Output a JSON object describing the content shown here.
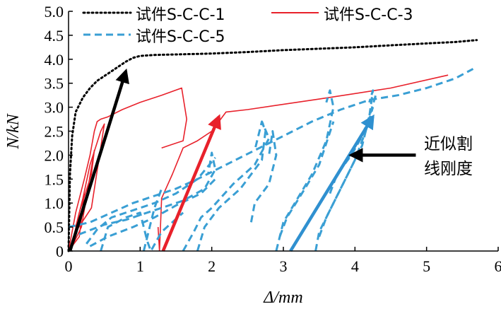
{
  "chart_data": {
    "type": "line",
    "xlabel": "Δ/mm",
    "ylabel": "N/kN",
    "xlim": [
      0,
      6
    ],
    "ylim": [
      0,
      5
    ],
    "xticks": [
      "0",
      "1",
      "2",
      "3",
      "4",
      "5",
      "6"
    ],
    "yticks": [
      "0",
      "0.5",
      "1.0",
      "1.5",
      "2.0",
      "2.5",
      "3.0",
      "3.5",
      "4.0",
      "4.5",
      "5.0"
    ],
    "grid": false,
    "legend_position": "top",
    "series": [
      {
        "name": "试件S-C-C-1",
        "color": "#000000",
        "style": "dotted",
        "x": [
          0,
          0.02,
          0.05,
          0.1,
          0.2,
          0.3,
          0.4,
          0.5,
          0.6,
          0.7,
          0.8,
          0.9,
          1.0,
          1.2,
          1.5,
          2.0,
          2.5,
          3.0,
          3.5,
          4.0,
          4.5,
          5.0,
          5.4,
          5.7
        ],
        "y": [
          0,
          1.6,
          2.4,
          2.9,
          3.2,
          3.4,
          3.55,
          3.65,
          3.75,
          3.85,
          3.95,
          4.03,
          4.07,
          4.09,
          4.1,
          4.12,
          4.15,
          4.19,
          4.22,
          4.25,
          4.29,
          4.33,
          4.36,
          4.4
        ]
      },
      {
        "name": "试件S-C-C-3",
        "color": "#e8212b",
        "style": "solid",
        "segments": [
          {
            "x": [
              0,
              0.1,
              0.22,
              0.3,
              0.36,
              0.4,
              0.45,
              0.55,
              0.75,
              1.0,
              1.3,
              1.58,
              1.65,
              1.6,
              1.3
            ],
            "y": [
              0,
              0.8,
              1.5,
              2.0,
              2.5,
              2.7,
              2.75,
              2.8,
              2.95,
              3.1,
              3.25,
              3.4,
              2.75,
              2.3,
              2.15
            ]
          },
          {
            "x": [
              0.1,
              0.2,
              0.3,
              0.45,
              0.5,
              0.32,
              0.1
            ],
            "y": [
              0.5,
              1.1,
              1.8,
              2.5,
              2.65,
              0.9,
              0.4
            ]
          },
          {
            "x": [
              0.05,
              0.15,
              0.32,
              0.36,
              0.18,
              0.05
            ],
            "y": [
              0.15,
              0.8,
              1.6,
              2.1,
              0.5,
              0.1
            ]
          },
          {
            "x": [
              0.05,
              0.15,
              0.22
            ],
            "y": [
              0.1,
              0.3,
              1.2
            ]
          },
          {
            "x": [
              1.27,
              1.3,
              1.45,
              1.6,
              1.8,
              2.0,
              2.1,
              2.2,
              2.5,
              3.5,
              4.5,
              5.3
            ],
            "y": [
              0,
              1.1,
              1.6,
              2.15,
              2.3,
              2.5,
              2.7,
              2.9,
              2.95,
              3.17,
              3.4,
              3.67
            ]
          },
          {
            "x": [
              1.25,
              1.27
            ],
            "y": [
              0.5,
              0
            ]
          }
        ]
      },
      {
        "name": "试件S-C-C-5",
        "color": "#3a9fd4",
        "style": "dashed",
        "segments": [
          {
            "x": [
              0.0,
              0.3,
              0.6,
              0.9,
              1.2,
              1.5,
              1.8,
              2.0,
              2.2,
              2.6,
              3.0,
              3.4,
              3.8,
              4.2,
              4.6,
              5.0,
              5.4,
              5.65
            ],
            "y": [
              0.5,
              0.6,
              0.8,
              1.0,
              1.15,
              1.3,
              1.5,
              1.65,
              1.8,
              2.1,
              2.4,
              2.7,
              2.95,
              3.15,
              3.25,
              3.4,
              3.6,
              3.8
            ]
          },
          {
            "x": [
              0.25,
              0.4,
              0.6,
              0.9,
              1.2,
              1.5,
              1.8,
              2.05
            ],
            "y": [
              0.15,
              0.45,
              0.7,
              0.85,
              1.0,
              1.2,
              1.5,
              1.95
            ]
          },
          {
            "x": [
              0.15,
              0.5,
              0.8,
              1.0,
              1.3,
              1.6,
              1.9,
              2.05,
              2.0,
              1.95
            ],
            "y": [
              0.35,
              0.55,
              0.65,
              0.75,
              0.9,
              1.05,
              1.3,
              1.7,
              2.05,
              1.6
            ]
          },
          {
            "x": [
              0.3,
              0.55,
              0.9,
              1.2,
              1.5,
              1.85,
              2.05
            ],
            "y": [
              0.1,
              0.3,
              0.5,
              0.7,
              0.95,
              1.2,
              1.5
            ]
          },
          {
            "x": [
              0.45,
              0.5,
              0.55,
              0.8,
              1.0,
              1.05,
              1.1,
              1.15,
              1.3,
              1.6
            ],
            "y": [
              0.0,
              0.25,
              0.5,
              0.7,
              0.8,
              0.5,
              0.2,
              0.0,
              0.4,
              0.8
            ]
          },
          {
            "x": [
              1.05,
              1.1,
              1.15,
              1.2,
              1.3
            ],
            "y": [
              0.0,
              0.3,
              0.6,
              0.9,
              1.3
            ]
          },
          {
            "x": [
              1.6,
              1.75,
              1.85,
              2.0,
              2.3,
              2.6,
              2.8,
              2.7,
              2.6
            ],
            "y": [
              0.0,
              0.4,
              0.7,
              0.9,
              1.4,
              1.8,
              2.35,
              2.7,
              2.1
            ]
          },
          {
            "x": [
              1.8,
              1.9,
              2.1,
              2.4,
              2.7,
              2.75,
              2.7
            ],
            "y": [
              0.0,
              0.5,
              0.9,
              1.3,
              1.9,
              2.5,
              2.7
            ]
          },
          {
            "x": [
              2.55,
              2.6,
              2.8,
              2.9,
              2.85,
              2.8
            ],
            "y": [
              0.6,
              1.0,
              1.4,
              2.0,
              2.5,
              2.0
            ]
          },
          {
            "x": [
              2.9,
              3.0,
              3.2,
              3.4,
              3.6,
              3.7,
              3.65,
              3.6
            ],
            "y": [
              0.0,
              0.6,
              1.1,
              1.6,
              2.3,
              3.0,
              3.35,
              3.1
            ]
          },
          {
            "x": [
              2.95,
              3.05,
              3.3,
              3.5,
              3.7
            ],
            "y": [
              0.3,
              0.7,
              1.3,
              1.8,
              2.7
            ]
          },
          {
            "x": [
              3.45,
              3.5,
              3.7,
              3.9,
              4.1,
              4.2,
              4.25,
              4.2
            ],
            "y": [
              0.0,
              0.4,
              1.0,
              1.6,
              2.2,
              2.8,
              3.35,
              3.1
            ]
          },
          {
            "x": [
              3.5,
              3.6,
              3.8,
              4.0,
              4.15,
              4.25
            ],
            "y": [
              0.3,
              0.7,
              1.3,
              1.9,
              2.5,
              3.0
            ]
          },
          {
            "x": [
              3.65,
              3.75,
              3.95,
              4.1,
              4.2,
              4.3
            ],
            "y": [
              1.2,
              1.6,
              2.0,
              2.4,
              2.8,
              3.3
            ]
          }
        ]
      }
    ],
    "arrows": [
      {
        "color": "#000000",
        "from": [
          0.02,
          0.0
        ],
        "to": [
          0.8,
          3.75
        ]
      },
      {
        "color": "#e8212b",
        "from": [
          1.32,
          0.0
        ],
        "to": [
          2.1,
          2.8
        ]
      },
      {
        "color": "#2f90d0",
        "from": [
          3.1,
          0.0
        ],
        "to": [
          4.25,
          2.8
        ]
      },
      {
        "color": "#000000",
        "from": [
          4.85,
          2.0
        ],
        "to": [
          3.95,
          2.0
        ]
      }
    ],
    "annotation": {
      "lines": [
        "近似割",
        "线刚度"
      ]
    }
  }
}
